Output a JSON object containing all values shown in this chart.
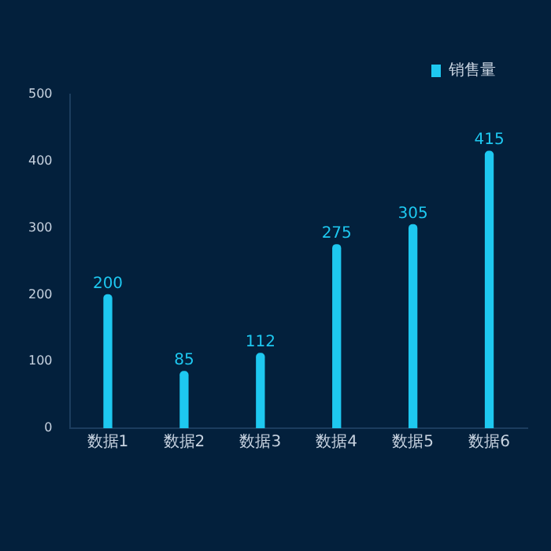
{
  "chart_data": {
    "type": "bar",
    "categories": [
      "数据1",
      "数据2",
      "数据3",
      "数据4",
      "数据5",
      "数据6"
    ],
    "series": [
      {
        "name": "销售量",
        "color": "#1ec8f0",
        "values": [
          200,
          85,
          112,
          275,
          305,
          415
        ]
      }
    ],
    "ylim": [
      0,
      500
    ],
    "yticks": [
      0,
      100,
      200,
      300,
      400,
      500
    ],
    "grid": false,
    "legend": "top right",
    "data_labels": true
  }
}
